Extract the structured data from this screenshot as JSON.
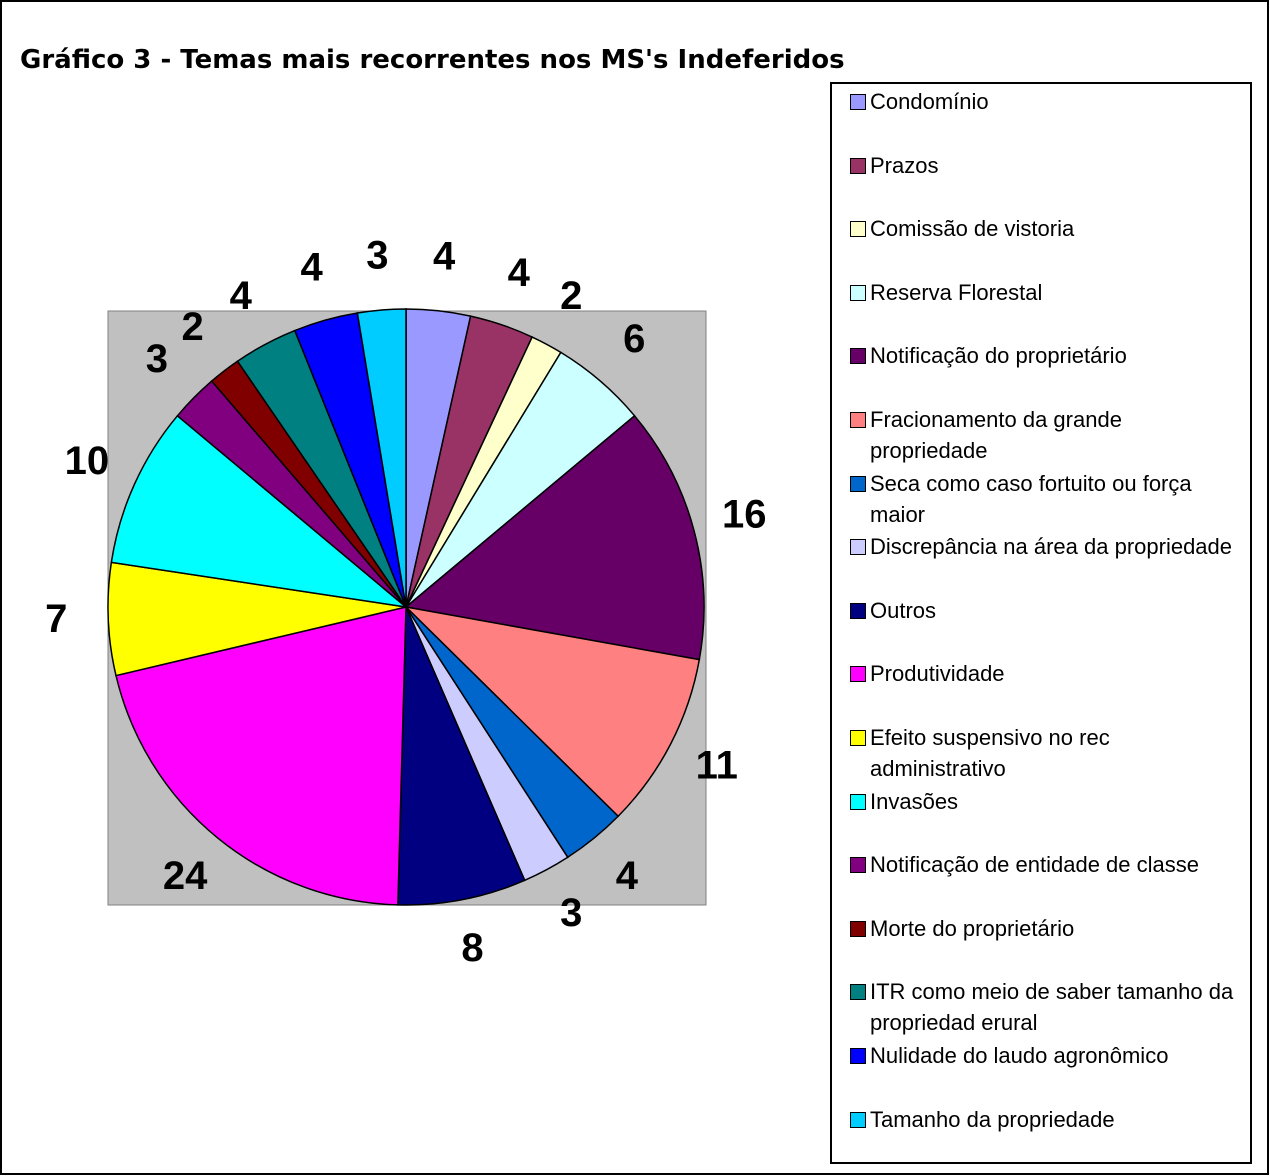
{
  "chart_data": {
    "type": "pie",
    "title": "Gráfico 3 - Temas mais recorrentes nos MS's Indeferidos",
    "categories": [
      "Condomínio",
      "Prazos",
      "Comissão de vistoria",
      "Reserva Florestal",
      "Notificação do proprietário",
      "Fracionamento da grande propriedade",
      "Seca como caso fortuito ou força maior",
      "Discrepância na área da propriedade",
      "Outros",
      "Produtividade",
      "Efeito suspensivo no rec administrativo",
      "Invasões",
      "Notificação de entidade de classe",
      "Morte do proprietário",
      "ITR como meio de saber tamanho da propriedad erural",
      "Nulidade do laudo agronômico",
      "Tamanho da propriedade"
    ],
    "values": [
      4,
      4,
      2,
      6,
      16,
      11,
      4,
      3,
      8,
      24,
      7,
      10,
      3,
      2,
      4,
      4,
      3
    ],
    "colors": [
      "#9999ff",
      "#993366",
      "#ffffcc",
      "#ccffff",
      "#660066",
      "#ff8080",
      "#0066cc",
      "#ccccff",
      "#000080",
      "#ff00ff",
      "#ffff00",
      "#00ffff",
      "#800080",
      "#800000",
      "#008080",
      "#0000ff",
      "#00ccff"
    ],
    "legend": "right"
  }
}
